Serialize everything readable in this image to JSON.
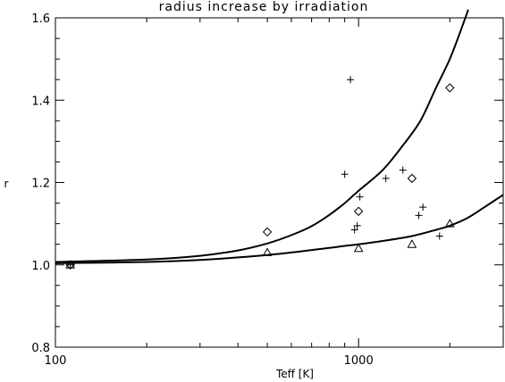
{
  "chart_data": {
    "type": "scatter",
    "title": "radius increase by irradiation",
    "xlabel": "Teff [K]",
    "ylabel": "r",
    "xscale": "log",
    "xlim": [
      100,
      3000
    ],
    "ylim": [
      0.8,
      1.6
    ],
    "x_ticks": [
      100,
      1000
    ],
    "x_tick_labels": [
      "100",
      "1000"
    ],
    "y_ticks": [
      0.8,
      1.0,
      1.2,
      1.4,
      1.6
    ],
    "y_tick_labels": [
      "0.8",
      "1.0",
      "1.2",
      "1.4",
      "1.6"
    ],
    "grid": false,
    "series": [
      {
        "marker": "plus",
        "points": [
          {
            "x": 112,
            "y": 1.0
          },
          {
            "x": 900,
            "y": 1.22
          },
          {
            "x": 940,
            "y": 1.45
          },
          {
            "x": 970,
            "y": 1.085
          },
          {
            "x": 990,
            "y": 1.095
          },
          {
            "x": 1010,
            "y": 1.165
          },
          {
            "x": 1230,
            "y": 1.21
          },
          {
            "x": 1400,
            "y": 1.23
          },
          {
            "x": 1580,
            "y": 1.12
          },
          {
            "x": 1630,
            "y": 1.14
          },
          {
            "x": 1850,
            "y": 1.07
          }
        ]
      },
      {
        "marker": "diamond",
        "points": [
          {
            "x": 112,
            "y": 1.0
          },
          {
            "x": 500,
            "y": 1.08
          },
          {
            "x": 1000,
            "y": 1.13
          },
          {
            "x": 1500,
            "y": 1.21
          },
          {
            "x": 2000,
            "y": 1.43
          }
        ]
      },
      {
        "marker": "triangle",
        "points": [
          {
            "x": 112,
            "y": 1.0
          },
          {
            "x": 500,
            "y": 1.03
          },
          {
            "x": 1000,
            "y": 1.04
          },
          {
            "x": 1500,
            "y": 1.05
          },
          {
            "x": 2000,
            "y": 1.1
          }
        ]
      }
    ],
    "curves": [
      {
        "points": [
          {
            "x": 100,
            "y": 1.007
          },
          {
            "x": 200,
            "y": 1.013
          },
          {
            "x": 300,
            "y": 1.022
          },
          {
            "x": 400,
            "y": 1.035
          },
          {
            "x": 500,
            "y": 1.052
          },
          {
            "x": 600,
            "y": 1.072
          },
          {
            "x": 700,
            "y": 1.094
          },
          {
            "x": 800,
            "y": 1.121
          },
          {
            "x": 900,
            "y": 1.15
          },
          {
            "x": 1000,
            "y": 1.18
          },
          {
            "x": 1200,
            "y": 1.23
          },
          {
            "x": 1400,
            "y": 1.29
          },
          {
            "x": 1600,
            "y": 1.35
          },
          {
            "x": 1800,
            "y": 1.43
          },
          {
            "x": 2000,
            "y": 1.5
          },
          {
            "x": 2200,
            "y": 1.58
          },
          {
            "x": 2300,
            "y": 1.62
          }
        ]
      },
      {
        "points": [
          {
            "x": 100,
            "y": 1.004
          },
          {
            "x": 200,
            "y": 1.007
          },
          {
            "x": 300,
            "y": 1.012
          },
          {
            "x": 400,
            "y": 1.018
          },
          {
            "x": 500,
            "y": 1.024
          },
          {
            "x": 600,
            "y": 1.03
          },
          {
            "x": 700,
            "y": 1.036
          },
          {
            "x": 800,
            "y": 1.041
          },
          {
            "x": 900,
            "y": 1.046
          },
          {
            "x": 1000,
            "y": 1.05
          },
          {
            "x": 1200,
            "y": 1.058
          },
          {
            "x": 1500,
            "y": 1.07
          },
          {
            "x": 1800,
            "y": 1.085
          },
          {
            "x": 2000,
            "y": 1.095
          },
          {
            "x": 2300,
            "y": 1.115
          },
          {
            "x": 2600,
            "y": 1.14
          },
          {
            "x": 3000,
            "y": 1.17
          }
        ]
      }
    ]
  }
}
